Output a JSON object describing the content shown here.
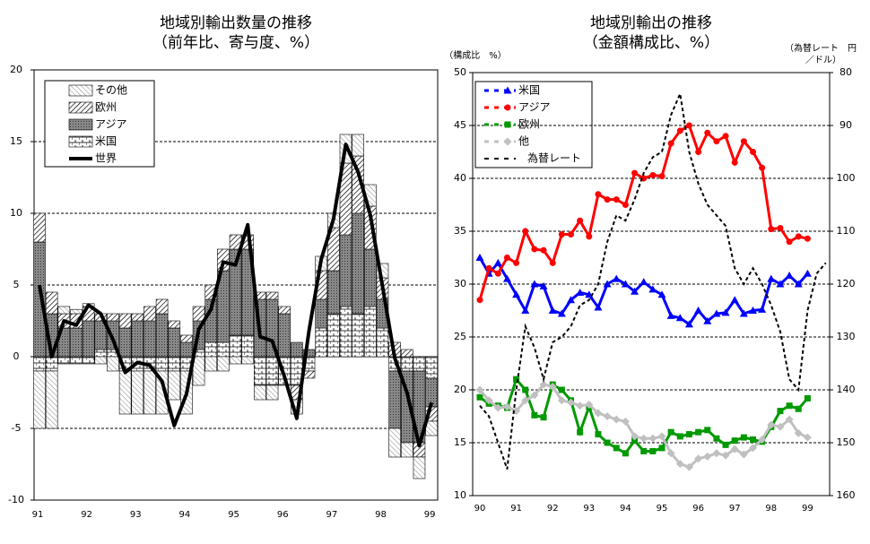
{
  "chart_data": [
    {
      "type": "bar",
      "title": "地域別輸出数量の推移",
      "subtitle": "（前年比、寄与度、%）",
      "categories": [
        "91",
        null,
        null,
        null,
        "92",
        null,
        null,
        null,
        "93",
        null,
        null,
        null,
        "94",
        null,
        null,
        null,
        "95",
        null,
        null,
        null,
        "96",
        null,
        null,
        null,
        "97",
        null,
        null,
        null,
        "98",
        null,
        null,
        null,
        "99"
      ],
      "ylim": [
        -10,
        20
      ],
      "yticks": [
        -10,
        -5,
        0,
        5,
        10,
        15,
        20
      ],
      "grid": true,
      "series": [
        {
          "name": "米国",
          "values": [
            -1,
            -1,
            -0.5,
            -0.5,
            -0.5,
            0.5,
            0.5,
            -1,
            -1,
            -1,
            -1,
            -1,
            -1,
            0.5,
            1,
            1,
            1.5,
            1.5,
            -2,
            -2,
            -2,
            -2,
            -1,
            2,
            3,
            3.5,
            3,
            3.5,
            2,
            -1,
            -1,
            -1,
            -1.5
          ]
        },
        {
          "name": "アジア",
          "values": [
            8,
            3,
            2,
            2,
            2.5,
            2,
            2,
            2,
            2.5,
            2.5,
            3,
            2,
            1,
            2,
            3,
            5,
            6,
            6,
            4,
            4,
            3,
            1,
            0.5,
            2,
            3,
            5,
            7,
            4,
            2,
            -4,
            -5,
            -5,
            -2
          ]
        },
        {
          "name": "欧州",
          "values": [
            2,
            1.5,
            1,
            1,
            1,
            0.5,
            0.5,
            1,
            0.5,
            1,
            1,
            0.5,
            0.5,
            1,
            1,
            1.5,
            1,
            1,
            0.5,
            0.5,
            0.5,
            -1,
            -0.5,
            2,
            3,
            5,
            4,
            3,
            1.5,
            1,
            0.5,
            -1,
            -1
          ]
        },
        {
          "name": "その他",
          "values": [
            -4,
            -4,
            0.5,
            0.3,
            0.2,
            -0.5,
            -1,
            -3,
            -3,
            -3,
            -3,
            -2,
            -3,
            -2,
            -1,
            -1,
            -0.5,
            -0.5,
            -1,
            -1,
            0,
            -1,
            0,
            1,
            1,
            2,
            1.5,
            1.5,
            1,
            -2,
            -1,
            -1.5,
            -1
          ]
        },
        {
          "name": "世界",
          "type": "line",
          "color": "#000000",
          "values": [
            5,
            0,
            2.5,
            2.2,
            3.6,
            3,
            1.2,
            -1.1,
            -0.4,
            -0.6,
            -1.7,
            -4.8,
            -2.6,
            1.9,
            3.3,
            6.6,
            6.4,
            9.2,
            1.4,
            1.1,
            -1.4,
            -4.3,
            1.8,
            6.8,
            9.6,
            14.8,
            12.9,
            9.9,
            4.9,
            -0.1,
            -2.5,
            -6.2,
            -3.2
          ]
        }
      ]
    },
    {
      "type": "line",
      "title": "地域別輸出の推移",
      "subtitle": "（金額構成比、%）",
      "ylabel": "（構成比　%）",
      "y2label": [
        "（為替レート　円",
        "／ドル）"
      ],
      "categories": [
        "90",
        null,
        null,
        null,
        "91",
        null,
        null,
        null,
        "92",
        null,
        null,
        null,
        "93",
        null,
        null,
        null,
        "94",
        null,
        null,
        null,
        "95",
        null,
        null,
        null,
        "96",
        null,
        null,
        null,
        "97",
        null,
        null,
        null,
        "98",
        null,
        null,
        null,
        "99",
        null,
        null
      ],
      "ylim": [
        10,
        50
      ],
      "yticks": [
        10,
        15,
        20,
        25,
        30,
        35,
        40,
        45,
        50
      ],
      "grid": true,
      "y2lim": [
        160,
        80
      ],
      "y2ticks": [
        80,
        90,
        100,
        110,
        120,
        130,
        140,
        150,
        160
      ],
      "series": [
        {
          "name": "米国",
          "color": "#0000ff",
          "marker": "triangle",
          "values": [
            32.5,
            31,
            32,
            30.5,
            29,
            27.5,
            30,
            29.8,
            27.5,
            27.2,
            28.5,
            29.2,
            29,
            27.8,
            30,
            30.5,
            30,
            29.3,
            30.2,
            29.5,
            29,
            27,
            26.8,
            26.2,
            27.5,
            26.5,
            27.2,
            27.3,
            28.5,
            27.2,
            27.5,
            27.6,
            30.5,
            30,
            30.8,
            30,
            31,
            null,
            null
          ]
        },
        {
          "name": "アジア",
          "color": "#ff0000",
          "marker": "circle",
          "values": [
            28.5,
            31.5,
            31,
            32.5,
            32,
            35,
            33.3,
            33.2,
            32,
            34.7,
            34.7,
            36,
            34.5,
            38.5,
            38,
            38,
            37.5,
            40.5,
            40,
            40.3,
            40.2,
            43.3,
            44.5,
            45,
            42.5,
            44.3,
            43.5,
            44,
            41.5,
            43.5,
            42.5,
            41,
            35.2,
            35.3,
            34,
            34.5,
            34.3,
            null,
            null
          ]
        },
        {
          "name": "欧州",
          "color": "#009900",
          "marker": "square",
          "values": [
            19.3,
            18.7,
            18.5,
            18.3,
            21,
            20,
            17.6,
            17.4,
            20.5,
            20,
            19,
            16,
            18.4,
            15.8,
            15,
            14.5,
            14,
            15.2,
            14.2,
            14.2,
            14.5,
            16,
            15.6,
            15.8,
            16,
            16.2,
            15.4,
            14.8,
            15.2,
            15.5,
            15.3,
            15.1,
            16.5,
            18,
            18.5,
            18.2,
            19.2,
            null,
            null
          ]
        },
        {
          "name": "他",
          "color": "#c0c0c0",
          "marker": "diamond",
          "values": [
            20,
            19,
            18.3,
            18.4,
            18,
            19,
            19.5,
            20.5,
            20.3,
            19,
            18.8,
            18.5,
            18.6,
            17.8,
            17.5,
            17.2,
            17,
            15.6,
            15.4,
            15.4,
            15.6,
            14,
            13,
            12.7,
            13.5,
            13.7,
            14,
            13.8,
            14.4,
            13.9,
            14.5,
            15.3,
            16.7,
            16.5,
            17.2,
            15.9,
            15.5,
            null,
            null
          ]
        },
        {
          "name": "為替レート",
          "color": "#000000",
          "axis": "y2",
          "dashed": true,
          "values": [
            143,
            145,
            150,
            155,
            140,
            128,
            132,
            138,
            131,
            130,
            128,
            124,
            123,
            120,
            112,
            107,
            108,
            104,
            99,
            96,
            95,
            88,
            84,
            95,
            101,
            105,
            107,
            109,
            117,
            120,
            117,
            120,
            124,
            129,
            138,
            140,
            125,
            118,
            116
          ]
        }
      ]
    }
  ]
}
